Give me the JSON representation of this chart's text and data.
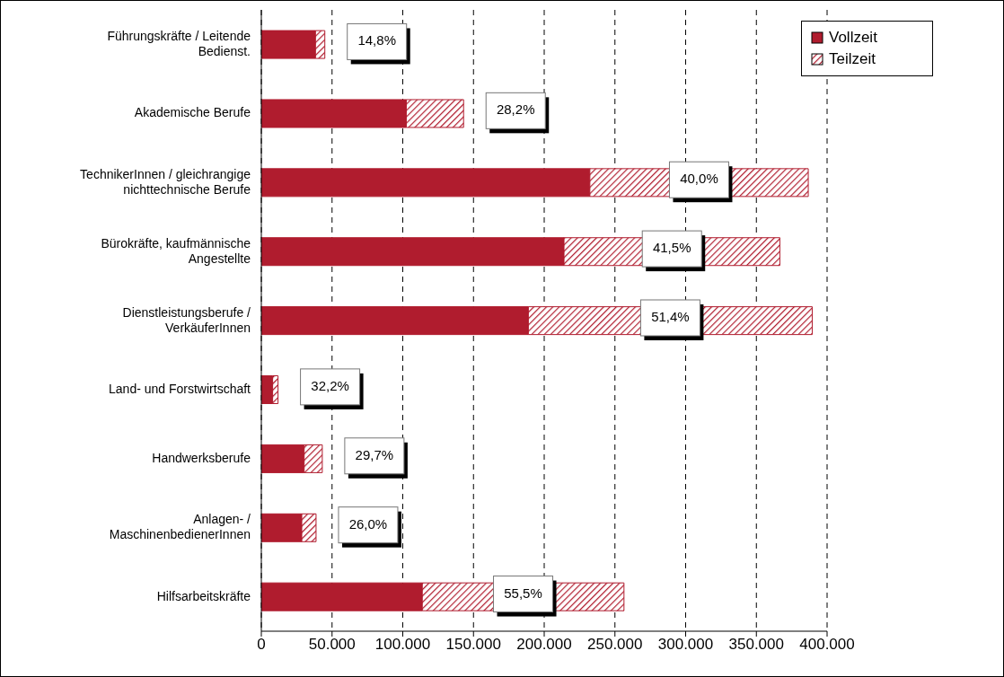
{
  "chart_data": {
    "type": "bar",
    "orientation": "horizontal",
    "stacked": true,
    "categories": [
      "Führungskräfte / Leitende\nBedienst.",
      "Akademische Berufe",
      "TechnikerInnen / gleichrangige\nnichttechnische Berufe",
      "Bürokräfte, kaufmännische\nAngestellte",
      "Dienstleistungsberufe /\nVerkäuferInnen",
      "Land- und Forstwirtschaft",
      "Handwerksberufe",
      "Anlagen- /\nMaschinenbedienerInnen",
      "Hilfsarbeitskräfte"
    ],
    "series": [
      {
        "name": "Vollzeit",
        "color": "#b01c2e",
        "values": [
          38300,
          102500,
          232300,
          214000,
          188800,
          8000,
          30300,
          28600,
          113800
        ]
      },
      {
        "name": "Teilzeit",
        "color": "#b01c2e",
        "values": [
          6600,
          40500,
          154400,
          152600,
          200700,
          3800,
          12800,
          10100,
          142600
        ]
      }
    ],
    "annotations": [
      "14,8%",
      "28,2%",
      "40,0%",
      "41,5%",
      "51,4%",
      "32,2%",
      "29,7%",
      "26,0%",
      "55,5%"
    ],
    "xlim": [
      0,
      400000
    ],
    "xticks": [
      0,
      {
        "value": 50000,
        "label": "50.000"
      },
      {
        "value": 100000,
        "label": "100.000"
      },
      {
        "value": 150000,
        "label": "150.000"
      },
      {
        "value": 200000,
        "label": "200.000"
      },
      {
        "value": 250000,
        "label": "250.000"
      },
      {
        "value": 300000,
        "label": "300.000"
      },
      {
        "value": 350000,
        "label": "350.000"
      },
      {
        "value": 400000,
        "label": "400.000"
      }
    ],
    "grid": "x",
    "legend": "top right"
  }
}
